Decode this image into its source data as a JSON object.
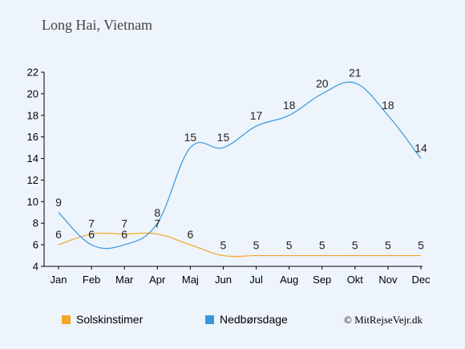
{
  "header": {
    "title": "Long Hai, Vietnam"
  },
  "chart_data": {
    "type": "line",
    "categories": [
      "Jan",
      "Feb",
      "Mar",
      "Apr",
      "Maj",
      "Jun",
      "Jul",
      "Aug",
      "Sep",
      "Okt",
      "Nov",
      "Dec"
    ],
    "ylim": [
      4,
      22
    ],
    "yticks": [
      4,
      6,
      8,
      10,
      12,
      14,
      16,
      18,
      20,
      22
    ],
    "grid": false,
    "series": [
      {
        "name": "Solskinstimer",
        "color": "#f5a623",
        "values": [
          6,
          7,
          7,
          7,
          6,
          5,
          5,
          5,
          5,
          5,
          5,
          5
        ]
      },
      {
        "name": "Nedbørsdage",
        "color": "#3498db",
        "values": [
          9,
          6,
          6,
          8,
          15,
          15,
          17,
          18,
          20,
          21,
          18,
          14
        ]
      }
    ],
    "legend_position": "bottom-left"
  },
  "footer": {
    "copyright": "© MitRejseVejr.dk"
  }
}
